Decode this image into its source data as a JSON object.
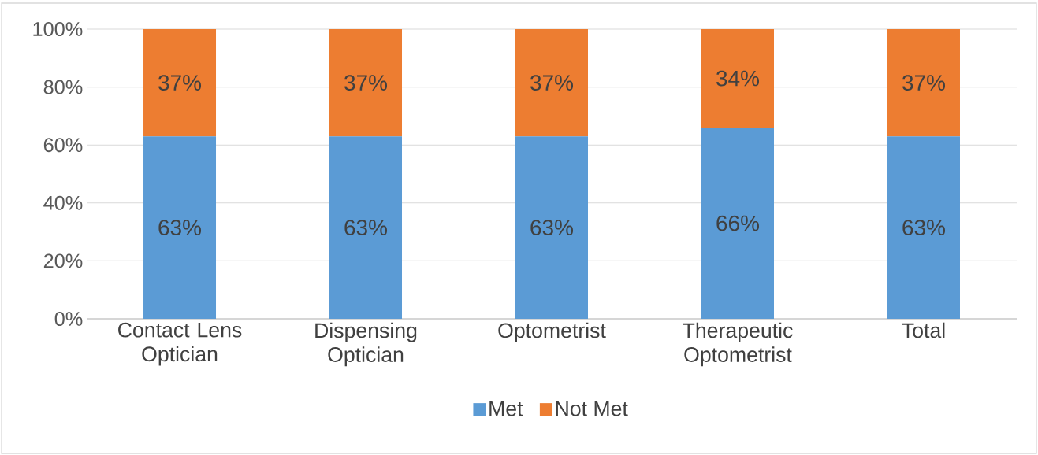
{
  "chart_data": {
    "type": "bar",
    "stacked": true,
    "categories": [
      "Contact Lens Optician",
      "Dispensing Optician",
      "Optometrist",
      "Therapeutic Optometrist",
      "Total"
    ],
    "series": [
      {
        "name": "Met",
        "color": "#5b9bd5",
        "values": [
          63,
          63,
          63,
          66,
          63
        ],
        "value_labels": [
          "63%",
          "63%",
          "63%",
          "66%",
          "63%"
        ]
      },
      {
        "name": "Not Met",
        "color": "#ed7d31",
        "values": [
          37,
          37,
          37,
          34,
          37
        ],
        "value_labels": [
          "37%",
          "37%",
          "37%",
          "34%",
          "37%"
        ]
      }
    ],
    "ylim": [
      0,
      100
    ],
    "yticks": [
      {
        "value": 0,
        "label": "0%"
      },
      {
        "value": 20,
        "label": "20%"
      },
      {
        "value": 40,
        "label": "40%"
      },
      {
        "value": 60,
        "label": "60%"
      },
      {
        "value": 80,
        "label": "80%"
      },
      {
        "value": 100,
        "label": "100%"
      }
    ],
    "grid": "y",
    "legend": "bottom"
  }
}
